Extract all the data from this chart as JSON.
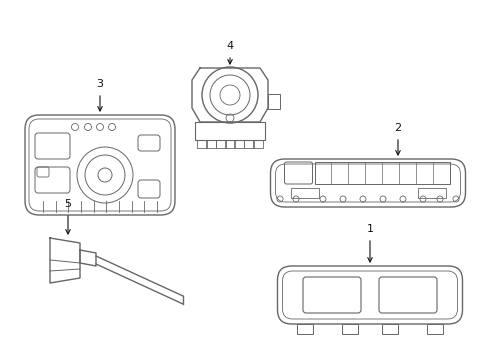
{
  "bg_color": "#ffffff",
  "line_color": "#666666",
  "text_color": "#111111",
  "fig_width": 4.9,
  "fig_height": 3.6,
  "dpi": 100
}
